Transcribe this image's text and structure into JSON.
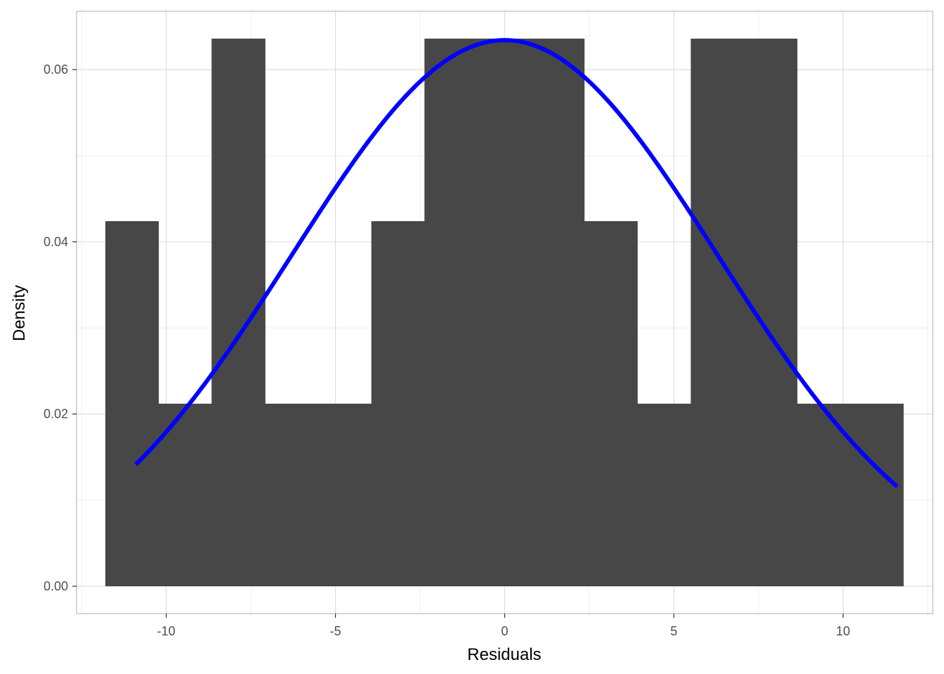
{
  "chart_data": {
    "type": "bar",
    "xlabel": "Residuals",
    "ylabel": "Density",
    "xlim": [
      -12.65,
      12.65
    ],
    "ylim": [
      -0.00318,
      0.06678
    ],
    "x_ticks": [
      -10,
      -5,
      0,
      5,
      10
    ],
    "y_ticks": [
      0.0,
      0.02,
      0.04,
      0.06
    ],
    "x_tick_labels": [
      "-10",
      "-5",
      "0",
      "5",
      "10"
    ],
    "y_tick_labels": [
      "0.00",
      "0.02",
      "0.04",
      "0.06"
    ],
    "grid": true,
    "bar_color": "#474747",
    "curve_color": "#0000ff",
    "bins": [
      {
        "x0": -11.8,
        "x1": -10.23,
        "density": 0.0424
      },
      {
        "x0": -10.23,
        "x1": -8.66,
        "density": 0.0212
      },
      {
        "x0": -8.66,
        "x1": -7.08,
        "density": 0.0636
      },
      {
        "x0": -7.08,
        "x1": -5.51,
        "density": 0.0212
      },
      {
        "x0": -5.51,
        "x1": -3.94,
        "density": 0.0212
      },
      {
        "x0": -3.94,
        "x1": -2.37,
        "density": 0.0424
      },
      {
        "x0": -2.37,
        "x1": -0.79,
        "density": 0.0636
      },
      {
        "x0": -0.79,
        "x1": 0.78,
        "density": 0.0636
      },
      {
        "x0": 0.78,
        "x1": 2.35,
        "density": 0.0636
      },
      {
        "x0": 2.35,
        "x1": 3.92,
        "density": 0.0424
      },
      {
        "x0": 3.92,
        "x1": 5.5,
        "density": 0.0212
      },
      {
        "x0": 5.5,
        "x1": 7.07,
        "density": 0.0636
      },
      {
        "x0": 7.07,
        "x1": 8.64,
        "density": 0.0636
      },
      {
        "x0": 8.64,
        "x1": 10.21,
        "density": 0.0212
      },
      {
        "x0": 10.21,
        "x1": 11.78,
        "density": 0.0212
      }
    ],
    "normal_curve": {
      "mean": 0,
      "sd": 6.29,
      "x_range": [
        -10.9,
        11.6
      ]
    }
  }
}
